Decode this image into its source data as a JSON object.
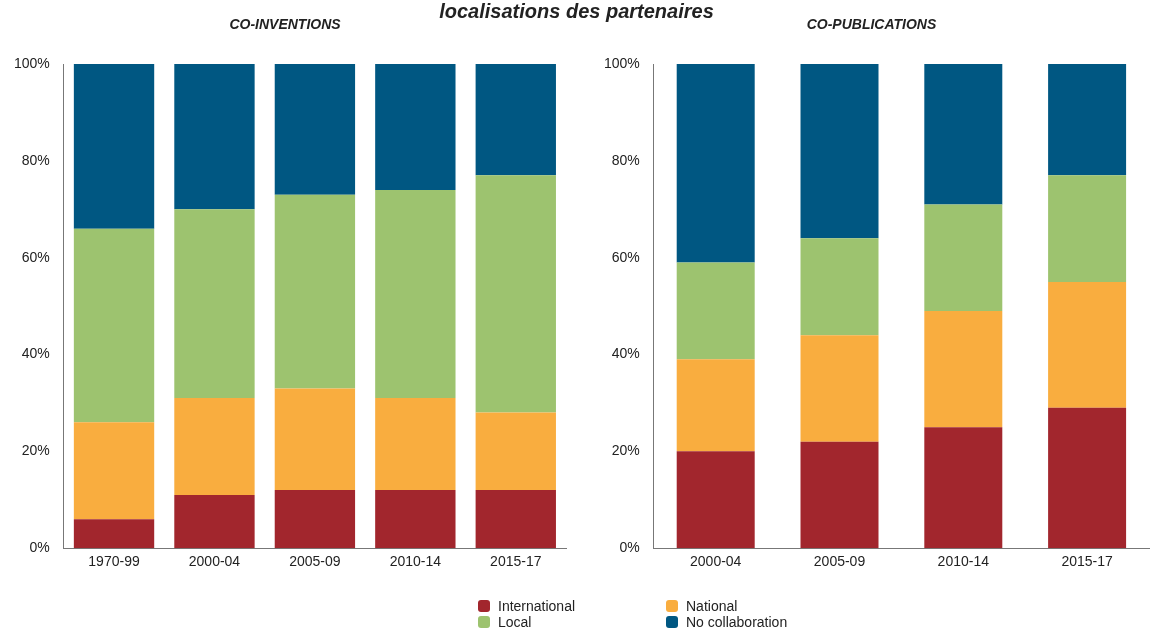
{
  "chart_data": [
    {
      "type": "bar",
      "title": "localisations des partenaires",
      "subtitle": "CO-INVENTIONS",
      "stacked": true,
      "legend": "bottom",
      "grid": false,
      "categories": [
        "1970-99",
        "2000-04",
        "2005-09",
        "2010-14",
        "2015-17"
      ],
      "series": [
        {
          "name": "International",
          "color": "#a2262d",
          "values": [
            6,
            11,
            12,
            12,
            12
          ]
        },
        {
          "name": "National",
          "color": "#f9ad3f",
          "values": [
            20,
            20,
            21,
            19,
            16
          ]
        },
        {
          "name": "Local",
          "color": "#9dc36f",
          "values": [
            40,
            39,
            40,
            43,
            49
          ]
        },
        {
          "name": "No collaboration",
          "color": "#005782",
          "values": [
            34,
            30,
            27,
            26,
            23
          ]
        }
      ],
      "ylim": [
        0,
        100
      ],
      "yticks": [
        {
          "value": 0,
          "label": "0%"
        },
        {
          "value": 20,
          "label": "20%"
        },
        {
          "value": 40,
          "label": "40%"
        },
        {
          "value": 60,
          "label": "60%"
        },
        {
          "value": 80,
          "label": "80%"
        },
        {
          "value": 100,
          "label": "100%"
        }
      ]
    },
    {
      "type": "bar",
      "subtitle": "CO-PUBLICATIONS",
      "stacked": true,
      "legend": false,
      "grid": false,
      "categories": [
        "2000-04",
        "2005-09",
        "2010-14",
        "2015-17"
      ],
      "series": [
        {
          "color": "#a2262d",
          "values": [
            20,
            22,
            25,
            29
          ]
        },
        {
          "color": "#f9ad3f",
          "values": [
            19,
            22,
            24,
            26
          ]
        },
        {
          "color": "#9dc36f",
          "values": [
            20,
            20,
            22,
            22
          ]
        },
        {
          "color": "#005782",
          "values": [
            41,
            36,
            29,
            23
          ]
        }
      ],
      "ylim": [
        0,
        100
      ],
      "yticks": [
        {
          "value": 0,
          "label": "0%"
        },
        {
          "value": 20,
          "label": "20%"
        },
        {
          "value": 40,
          "label": "40%"
        },
        {
          "value": 60,
          "label": "60%"
        },
        {
          "value": 80,
          "label": "80%"
        },
        {
          "value": 100,
          "label": "100%"
        }
      ]
    }
  ]
}
